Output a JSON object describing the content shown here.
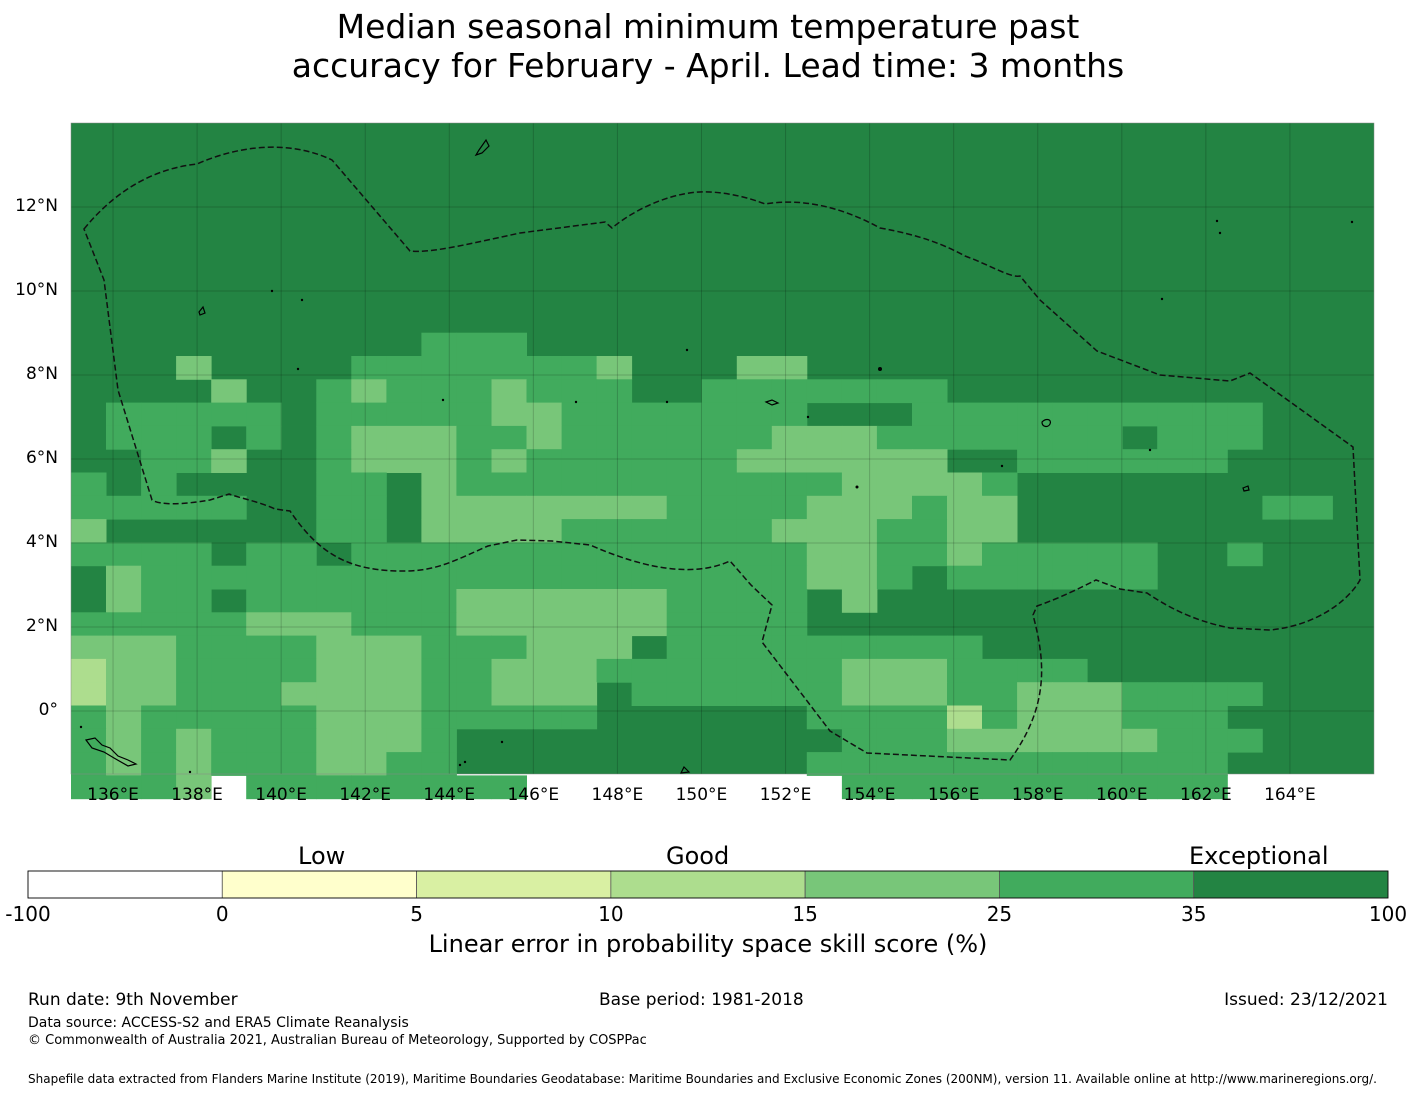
{
  "title": {
    "line1": "Median seasonal minimum temperature past",
    "line2": "accuracy for February - April. Lead time: 3 months"
  },
  "map": {
    "longitude_labels": [
      "136°E",
      "138°E",
      "140°E",
      "142°E",
      "144°E",
      "146°E",
      "148°E",
      "150°E",
      "152°E",
      "154°E",
      "156°E",
      "158°E",
      "160°E",
      "162°E",
      "164°E"
    ],
    "latitude_labels": [
      "12°N",
      "10°N",
      "8°N",
      "6°N",
      "4°N",
      "2°N",
      "0°"
    ],
    "base_color": "#238443"
  },
  "legend": {
    "categories": [
      "Low",
      "Good",
      "Exceptional"
    ],
    "ticks": [
      "-100",
      "0",
      "5",
      "10",
      "15",
      "25",
      "35",
      "100"
    ],
    "colors": [
      "#ffffff",
      "#ffffcc",
      "#d9f0a3",
      "#addd8e",
      "#78c679",
      "#41ab5d",
      "#238443"
    ],
    "title": "Linear error in probability space skill score (%)"
  },
  "footer": {
    "run_date": "Run date: 9th November",
    "base_period": "Base period: 1981-2018",
    "issued": "Issued: 23/12/2021",
    "data_source": "Data source: ACCESS-S2 and ERA5 Climate Reanalysis",
    "copyright": "© Commonwealth of Australia 2021, Australian Bureau of Meteorology, Supported by COSPPac",
    "shapefile": "Shapefile data extracted from Flanders Marine Institute (2019), Maritime Boundaries Geodatabase: Maritime Boundaries and Exclusive Economic Zones (200NM), version 11. Available online at http://www.marineregions.org/."
  }
}
